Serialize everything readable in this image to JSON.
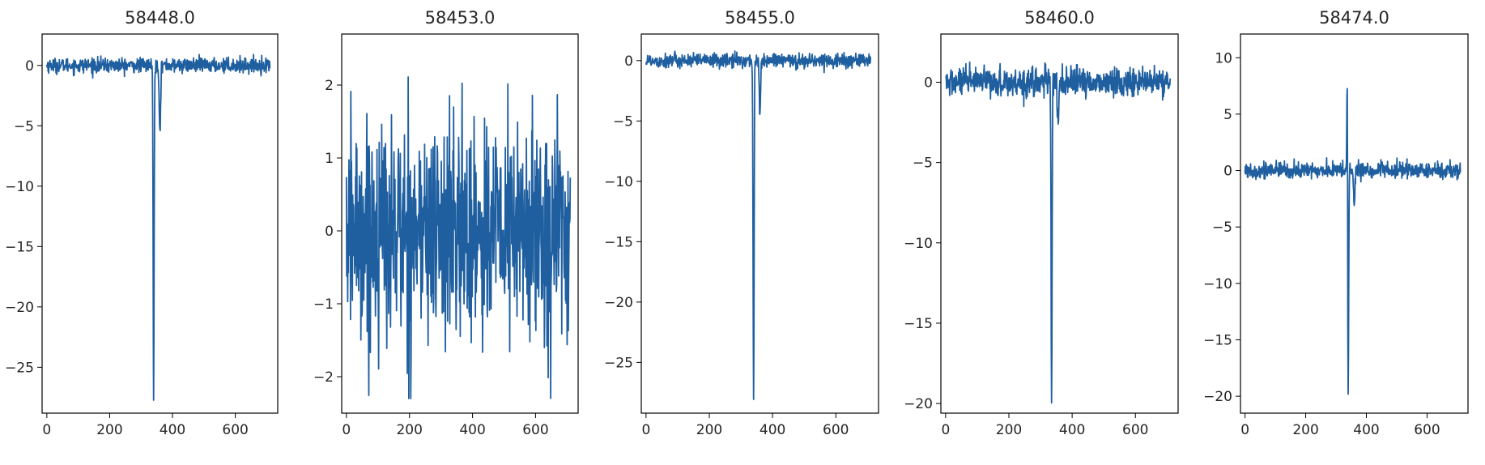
{
  "chart_data": [
    {
      "type": "line",
      "title": "58448.0",
      "xlim": [
        -15,
        735
      ],
      "ylim": [
        -28.8,
        2.6
      ],
      "xticks": [
        0,
        200,
        400,
        600
      ],
      "yticks": [
        0,
        -5,
        -10,
        -15,
        -20,
        -25
      ],
      "tick_labels_x": [
        "0",
        "200",
        "400",
        "600"
      ],
      "tick_labels_y": [
        "0",
        "−5",
        "−10",
        "−15",
        "−20",
        "−25"
      ],
      "series": [
        {
          "color": "#1f5fa0",
          "noise_sd": 0.3,
          "x_range": [
            0,
            710
          ],
          "dip_x": 340,
          "dip_min": -27.4,
          "secondary_x": 360,
          "secondary_min": -5.3,
          "spike_max": null
        }
      ]
    },
    {
      "type": "line",
      "title": "58453.0",
      "xlim": [
        -15,
        735
      ],
      "ylim": [
        -2.5,
        2.7
      ],
      "xticks": [
        0,
        200,
        400,
        600
      ],
      "yticks": [
        2,
        1,
        0,
        -1,
        -2
      ],
      "tick_labels_x": [
        "0",
        "200",
        "400",
        "600"
      ],
      "tick_labels_y": [
        "2",
        "1",
        "0",
        "−1",
        "−2"
      ],
      "series": [
        {
          "color": "#1f5fa0",
          "noise_sd": 0.75,
          "x_range": [
            0,
            710
          ],
          "max": 2.5,
          "min": -2.3
        }
      ]
    },
    {
      "type": "line",
      "title": "58455.0",
      "xlim": [
        -15,
        735
      ],
      "ylim": [
        -29.2,
        2.2
      ],
      "xticks": [
        0,
        200,
        400,
        600
      ],
      "yticks": [
        0,
        -5,
        -10,
        -15,
        -20,
        -25
      ],
      "tick_labels_x": [
        "0",
        "200",
        "400",
        "600"
      ],
      "tick_labels_y": [
        "0",
        "−5",
        "−10",
        "−15",
        "−20",
        "−25"
      ],
      "series": [
        {
          "color": "#1f5fa0",
          "noise_sd": 0.3,
          "x_range": [
            0,
            710
          ],
          "dip_x": 340,
          "dip_min": -27.8,
          "secondary_x": 360,
          "secondary_min": -4.3,
          "spike_max": null
        }
      ]
    },
    {
      "type": "line",
      "title": "58460.0",
      "xlim": [
        -15,
        735
      ],
      "ylim": [
        -20.6,
        3.0
      ],
      "xticks": [
        0,
        200,
        400,
        600
      ],
      "yticks": [
        0,
        -5,
        -10,
        -15,
        -20
      ],
      "tick_labels_x": [
        "0",
        "200",
        "400",
        "600"
      ],
      "tick_labels_y": [
        "0",
        "−5",
        "−10",
        "−15",
        "−20"
      ],
      "series": [
        {
          "color": "#1f5fa0",
          "noise_sd": 0.45,
          "x_range": [
            0,
            710
          ],
          "dip_x": 335,
          "dip_min": -19.5,
          "secondary_x": 355,
          "secondary_min": -2.7,
          "spike_max": null
        }
      ]
    },
    {
      "type": "line",
      "title": "58474.0",
      "xlim": [
        -15,
        735
      ],
      "ylim": [
        -21.5,
        12.1
      ],
      "xticks": [
        0,
        200,
        400,
        600
      ],
      "yticks": [
        10,
        5,
        0,
        -5,
        -10,
        -15,
        -20
      ],
      "tick_labels_x": [
        "0",
        "200",
        "400",
        "600"
      ],
      "tick_labels_y": [
        "10",
        "5",
        "0",
        "−5",
        "−10",
        "−15",
        "−20"
      ],
      "series": [
        {
          "color": "#1f5fa0",
          "noise_sd": 0.35,
          "x_range": [
            0,
            710
          ],
          "dip_x": 340,
          "dip_min": -20.1,
          "secondary_x": 360,
          "secondary_min": -3.2,
          "spike_max": 10.6
        }
      ]
    }
  ]
}
